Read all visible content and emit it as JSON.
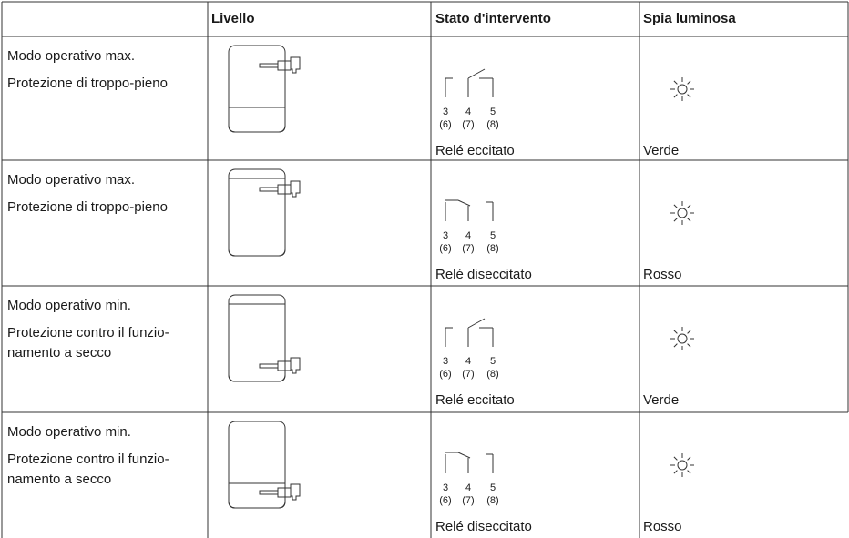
{
  "header": {
    "level": "Livello",
    "state": "Stato d'intervento",
    "light": "Spia luminosa"
  },
  "terminals": {
    "numbers": [
      "3",
      "4",
      "5"
    ],
    "alt": [
      "(6)",
      "(7)",
      "(8)"
    ]
  },
  "rows": [
    {
      "mode": [
        "Modo operativo max.",
        "Protezione di troppo-pieno"
      ],
      "relay": "Relé eccitato",
      "light": "Verde"
    },
    {
      "mode": [
        "Modo operativo max.",
        "Protezione di troppo-pieno"
      ],
      "relay": "Relé diseccitato",
      "light": "Rosso"
    },
    {
      "mode": [
        "Modo operativo min.",
        "Protezione contro il funzio-",
        "namento a secco"
      ],
      "relay": "Relé eccitato",
      "light": "Verde"
    },
    {
      "mode": [
        "Modo operativo min.",
        "Protezione contro il funzio-",
        "namento a secco"
      ],
      "relay": "Relé diseccitato",
      "light": "Rosso"
    }
  ]
}
